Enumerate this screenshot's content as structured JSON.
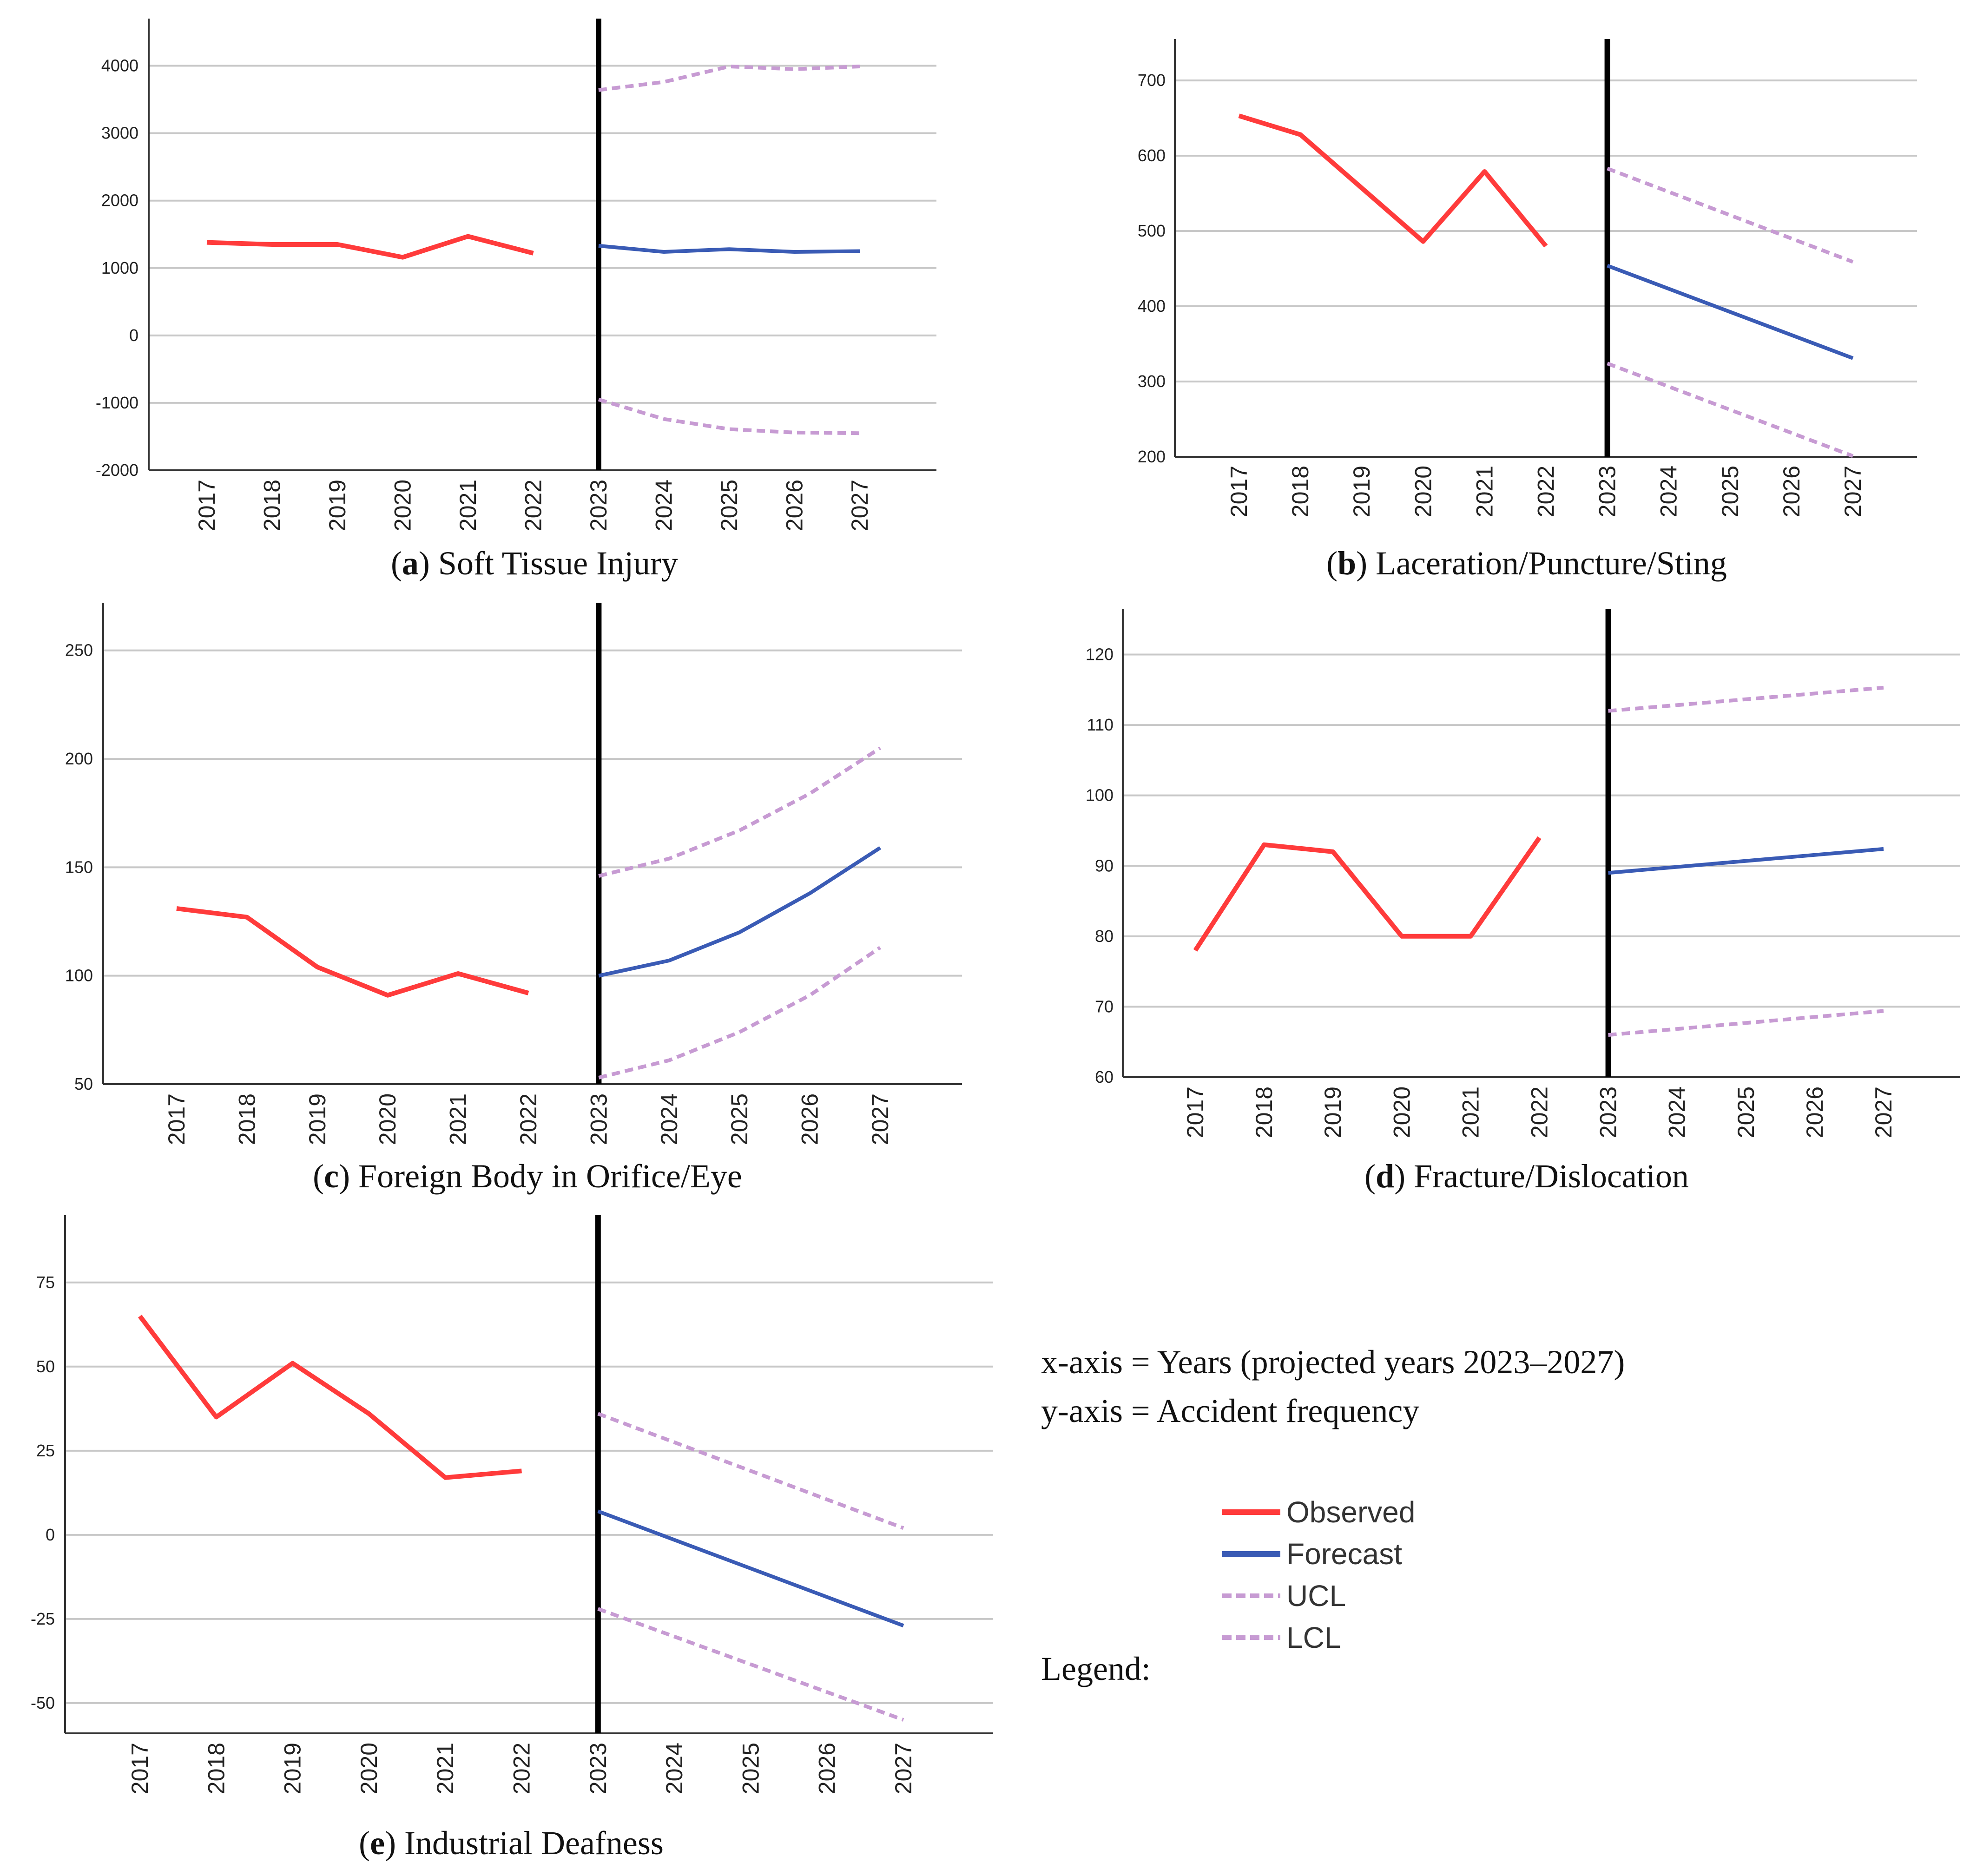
{
  "colors": {
    "observed": "#ff3b3b",
    "forecast": "#3a5bb5",
    "limits": "#c79bd3",
    "grid": "#c8c8c8",
    "axis": "#333333",
    "divider": "#000000"
  },
  "x_years": [
    "2017",
    "2018",
    "2019",
    "2020",
    "2021",
    "2022",
    "2023",
    "2024",
    "2025",
    "2026",
    "2027"
  ],
  "chart_data": [
    {
      "type": "line",
      "panel_letter": "a",
      "title": "Soft Tissue Injury",
      "xlabel": "Years",
      "ylabel": "Accident frequency",
      "ylim": [
        -2000,
        4700
      ],
      "yticks": [
        -2000,
        -1000,
        0,
        1000,
        2000,
        3000,
        4000
      ],
      "ytick_labels": [
        "-2000",
        "-1000",
        "0",
        "1000",
        "2000",
        "3000",
        "4000"
      ],
      "series": [
        {
          "name": "Observed",
          "x": [
            "2017",
            "2018",
            "2019",
            "2020",
            "2021",
            "2022"
          ],
          "values": [
            1380,
            1350,
            1350,
            1160,
            1470,
            1220
          ]
        },
        {
          "name": "Forecast",
          "x": [
            "2023",
            "2024",
            "2025",
            "2026",
            "2027"
          ],
          "values": [
            1330,
            1240,
            1280,
            1240,
            1250
          ]
        },
        {
          "name": "UCL",
          "x": [
            "2023",
            "2024",
            "2025",
            "2026",
            "2027"
          ],
          "values": [
            3640,
            3760,
            3990,
            3950,
            3990
          ]
        },
        {
          "name": "LCL",
          "x": [
            "2023",
            "2024",
            "2025",
            "2026",
            "2027"
          ],
          "values": [
            -950,
            -1240,
            -1390,
            -1440,
            -1450
          ]
        }
      ]
    },
    {
      "type": "line",
      "panel_letter": "b",
      "title": "Laceration/Puncture/Sting",
      "xlabel": "Years",
      "ylabel": "Accident frequency",
      "ylim": [
        200,
        755
      ],
      "yticks": [
        200,
        300,
        400,
        500,
        600,
        700
      ],
      "ytick_labels": [
        "200",
        "300",
        "400",
        "500",
        "600",
        "700"
      ],
      "series": [
        {
          "name": "Observed",
          "x": [
            "2017",
            "2018",
            "2019",
            "2020",
            "2021",
            "2022"
          ],
          "values": [
            653,
            628,
            557,
            486,
            579,
            480
          ]
        },
        {
          "name": "Forecast",
          "x": [
            "2023",
            "2027"
          ],
          "values": [
            454,
            331
          ]
        },
        {
          "name": "UCL",
          "x": [
            "2023",
            "2027"
          ],
          "values": [
            583,
            459
          ]
        },
        {
          "name": "LCL",
          "x": [
            "2023",
            "2027"
          ],
          "values": [
            324,
            201
          ]
        }
      ]
    },
    {
      "type": "line",
      "panel_letter": "c",
      "title": "Foreign Body in Orifice/Eye",
      "xlabel": "Years",
      "ylabel": "Accident frequency",
      "ylim": [
        50,
        272
      ],
      "yticks": [
        50,
        100,
        150,
        200,
        250
      ],
      "ytick_labels": [
        "50",
        "100",
        "150",
        "200",
        "250"
      ],
      "series": [
        {
          "name": "Observed",
          "x": [
            "2017",
            "2018",
            "2019",
            "2020",
            "2021",
            "2022"
          ],
          "values": [
            131,
            127,
            104,
            91,
            101,
            92
          ]
        },
        {
          "name": "Forecast",
          "x": [
            "2023",
            "2024",
            "2025",
            "2026",
            "2027"
          ],
          "values": [
            100,
            107,
            120,
            138,
            159
          ]
        },
        {
          "name": "UCL",
          "x": [
            "2023",
            "2024",
            "2025",
            "2026",
            "2027"
          ],
          "values": [
            146,
            154,
            167,
            184,
            205
          ]
        },
        {
          "name": "LCL",
          "x": [
            "2023",
            "2024",
            "2025",
            "2026",
            "2027"
          ],
          "values": [
            53,
            61,
            74,
            91,
            113
          ]
        }
      ]
    },
    {
      "type": "line",
      "panel_letter": "d",
      "title": "Fracture/Dislocation",
      "xlabel": "Years",
      "ylabel": "Accident frequency",
      "ylim": [
        60,
        126.5
      ],
      "yticks": [
        60,
        70,
        80,
        90,
        100,
        110,
        120
      ],
      "ytick_labels": [
        "60",
        "70",
        "80",
        "90",
        "100",
        "110",
        "120"
      ],
      "series": [
        {
          "name": "Observed",
          "x": [
            "2017",
            "2018",
            "2019",
            "2020",
            "2021",
            "2022"
          ],
          "values": [
            78,
            93,
            92,
            80,
            80,
            94
          ]
        },
        {
          "name": "Forecast",
          "x": [
            "2023",
            "2027"
          ],
          "values": [
            89,
            92.4
          ]
        },
        {
          "name": "UCL",
          "x": [
            "2023",
            "2027"
          ],
          "values": [
            112,
            115.3
          ]
        },
        {
          "name": "LCL",
          "x": [
            "2023",
            "2027"
          ],
          "values": [
            66,
            69.4
          ]
        }
      ]
    },
    {
      "type": "line",
      "panel_letter": "e",
      "title": "Industrial Deafness",
      "xlabel": "Years",
      "ylabel": "Accident frequency",
      "ylim": [
        -59,
        95
      ],
      "yticks": [
        -50,
        -25,
        0,
        25,
        50,
        75
      ],
      "ytick_labels": [
        "-50",
        "-25",
        "0",
        "25",
        "50",
        "75"
      ],
      "series": [
        {
          "name": "Observed",
          "x": [
            "2017",
            "2018",
            "2019",
            "2020",
            "2021",
            "2022"
          ],
          "values": [
            65,
            35,
            51,
            36,
            17,
            19
          ]
        },
        {
          "name": "Forecast",
          "x": [
            "2023",
            "2027"
          ],
          "values": [
            7,
            -27
          ]
        },
        {
          "name": "UCL",
          "x": [
            "2023",
            "2027"
          ],
          "values": [
            36,
            2
          ]
        },
        {
          "name": "LCL",
          "x": [
            "2023",
            "2027"
          ],
          "values": [
            -22,
            -55
          ]
        }
      ]
    }
  ],
  "notes": {
    "x_axis": "x-axis = Years (projected years 2023–2027)",
    "y_axis": "y-axis = Accident frequency"
  },
  "legend": {
    "label": "Legend:",
    "items": [
      {
        "name": "Observed",
        "style": "solid",
        "color_key": "observed"
      },
      {
        "name": "Forecast",
        "style": "solid",
        "color_key": "forecast"
      },
      {
        "name": "UCL",
        "style": "dashed",
        "color_key": "limits"
      },
      {
        "name": "LCL",
        "style": "dashed",
        "color_key": "limits"
      }
    ]
  }
}
